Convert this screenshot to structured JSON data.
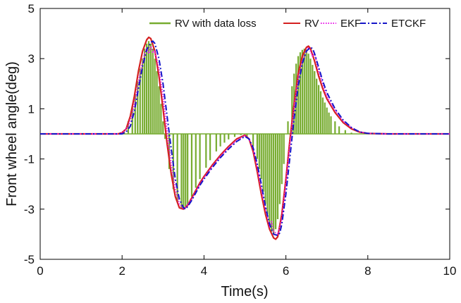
{
  "chart_data": {
    "type": "line",
    "title": "",
    "xlabel": "Time(s)",
    "ylabel": "Front wheel angle(deg)",
    "xlim": [
      0,
      10
    ],
    "ylim": [
      -5,
      5
    ],
    "xticks": [
      0,
      2,
      4,
      6,
      8,
      10
    ],
    "yticks": [
      -5,
      -3,
      -1,
      1,
      3,
      5
    ],
    "xtick_labels": [
      "0",
      "2",
      "4",
      "6",
      "8",
      "10"
    ],
    "ytick_labels": [
      "-5",
      "-3",
      "-1",
      "1",
      "3",
      "5"
    ],
    "grid": false,
    "legend_position": "top",
    "legend": [
      "RV with data loss",
      "RV",
      "EKF",
      "ETCKF"
    ],
    "series": [
      {
        "name": "RV with data loss",
        "style": "stem",
        "color": "#77ac30",
        "x": [
          2.05,
          2.15,
          2.25,
          2.32,
          2.38,
          2.44,
          2.5,
          2.55,
          2.6,
          2.65,
          2.7,
          2.75,
          2.8,
          2.85,
          2.9,
          2.95,
          3.0,
          3.05,
          3.15,
          3.25,
          3.35,
          3.45,
          3.5,
          3.55,
          3.6,
          3.7,
          3.8,
          3.9,
          4.05,
          4.15,
          4.3,
          4.4,
          4.5,
          4.6,
          4.75,
          4.9,
          5.05,
          5.2,
          5.3,
          5.35,
          5.4,
          5.45,
          5.5,
          5.55,
          5.6,
          5.65,
          5.7,
          5.75,
          5.8,
          5.85,
          5.9,
          5.95,
          6.05,
          6.15,
          6.2,
          6.25,
          6.3,
          6.35,
          6.4,
          6.45,
          6.5,
          6.55,
          6.6,
          6.65,
          6.7,
          6.75,
          6.8,
          6.85,
          6.9,
          6.95,
          7.0,
          7.05,
          7.1,
          7.2,
          7.3,
          7.45,
          7.6
        ],
        "values": [
          0.15,
          0.5,
          1.1,
          1.6,
          2.1,
          2.6,
          3.0,
          3.4,
          3.6,
          3.7,
          3.6,
          3.4,
          3.0,
          2.5,
          1.9,
          1.2,
          0.5,
          -0.2,
          -1.4,
          -2.2,
          -2.7,
          -2.95,
          -3.0,
          -2.9,
          -2.8,
          -2.5,
          -2.15,
          -1.8,
          -1.35,
          -1.05,
          -0.7,
          -0.5,
          -0.35,
          -0.22,
          -0.12,
          -0.05,
          -0.15,
          -0.5,
          -1.0,
          -1.4,
          -1.8,
          -2.3,
          -2.8,
          -3.2,
          -3.6,
          -3.9,
          -4.0,
          -3.8,
          -3.4,
          -2.8,
          -2.0,
          -1.2,
          0.5,
          1.9,
          2.4,
          2.8,
          3.1,
          3.25,
          3.35,
          3.4,
          3.35,
          3.2,
          3.0,
          2.75,
          2.5,
          2.2,
          1.95,
          1.7,
          1.45,
          1.25,
          1.05,
          0.85,
          0.7,
          0.5,
          0.3,
          0.15,
          0.05
        ]
      },
      {
        "name": "RV",
        "style": "solid",
        "color": "#d42020",
        "x": [
          0,
          1.9,
          2.0,
          2.1,
          2.2,
          2.3,
          2.4,
          2.5,
          2.6,
          2.65,
          2.7,
          2.8,
          2.9,
          3.0,
          3.1,
          3.2,
          3.3,
          3.4,
          3.5,
          3.6,
          3.7,
          3.8,
          3.9,
          4.0,
          4.2,
          4.4,
          4.6,
          4.8,
          5.0,
          5.1,
          5.2,
          5.3,
          5.4,
          5.5,
          5.6,
          5.7,
          5.75,
          5.8,
          5.9,
          6.0,
          6.1,
          6.2,
          6.3,
          6.4,
          6.5,
          6.55,
          6.6,
          6.7,
          6.8,
          6.9,
          7.0,
          7.2,
          7.4,
          7.6,
          7.8,
          8.0,
          8.5,
          10
        ],
        "values": [
          0,
          0,
          0.05,
          0.2,
          0.7,
          1.5,
          2.5,
          3.3,
          3.75,
          3.85,
          3.8,
          3.3,
          2.3,
          1.0,
          -0.4,
          -1.6,
          -2.5,
          -2.95,
          -3.0,
          -2.85,
          -2.55,
          -2.25,
          -1.95,
          -1.7,
          -1.25,
          -0.85,
          -0.5,
          -0.2,
          -0.05,
          -0.2,
          -0.7,
          -1.5,
          -2.4,
          -3.2,
          -3.8,
          -4.15,
          -4.2,
          -4.1,
          -3.2,
          -1.8,
          -0.2,
          1.2,
          2.4,
          3.1,
          3.45,
          3.5,
          3.4,
          2.9,
          2.3,
          1.8,
          1.4,
          0.85,
          0.45,
          0.2,
          0.07,
          0.02,
          0,
          0
        ]
      },
      {
        "name": "EKF",
        "style": "dotted",
        "color": "#e815e8",
        "x": [
          0,
          1.95,
          2.05,
          2.15,
          2.25,
          2.35,
          2.45,
          2.55,
          2.6,
          2.65,
          2.7,
          2.75,
          2.8,
          2.9,
          3.0,
          3.1,
          3.2,
          3.3,
          3.4,
          3.5,
          3.55,
          3.6,
          3.7,
          3.8,
          3.9,
          4.0,
          4.2,
          4.4,
          4.6,
          4.8,
          5.0,
          5.1,
          5.2,
          5.3,
          5.4,
          5.5,
          5.55,
          5.6,
          5.65,
          5.7,
          5.75,
          5.8,
          5.9,
          6.0,
          6.1,
          6.2,
          6.3,
          6.4,
          6.5,
          6.55,
          6.6,
          6.65,
          6.7,
          6.8,
          6.9,
          7.0,
          7.1,
          7.2,
          7.4,
          7.6,
          7.8,
          8.0,
          8.5,
          10
        ],
        "values": [
          0,
          0,
          0.1,
          0.3,
          0.8,
          1.6,
          2.5,
          3.2,
          3.4,
          3.2,
          3.5,
          3.25,
          3.3,
          2.6,
          1.5,
          0.1,
          -1.2,
          -2.2,
          -2.8,
          -3.0,
          -2.95,
          -2.8,
          -2.6,
          -2.3,
          -2.0,
          -1.75,
          -1.3,
          -0.9,
          -0.55,
          -0.25,
          -0.07,
          -0.2,
          -0.6,
          -1.3,
          -2.2,
          -3.0,
          -3.3,
          -3.7,
          -3.5,
          -3.9,
          -3.95,
          -4.0,
          -3.4,
          -2.0,
          -0.4,
          1.0,
          2.2,
          2.9,
          3.3,
          3.45,
          3.3,
          3.1,
          3.2,
          2.5,
          2.0,
          1.5,
          1.2,
          0.95,
          0.5,
          0.25,
          0.08,
          0.02,
          0,
          0
        ]
      },
      {
        "name": "ETCKF",
        "style": "dashdot",
        "color": "#1515c8",
        "x": [
          0,
          2.0,
          2.1,
          2.2,
          2.3,
          2.4,
          2.5,
          2.6,
          2.7,
          2.75,
          2.8,
          2.9,
          3.0,
          3.1,
          3.2,
          3.3,
          3.4,
          3.5,
          3.55,
          3.6,
          3.7,
          3.8,
          3.9,
          4.0,
          4.2,
          4.4,
          4.6,
          4.8,
          5.0,
          5.1,
          5.2,
          5.3,
          5.4,
          5.5,
          5.6,
          5.7,
          5.8,
          5.85,
          5.9,
          6.0,
          6.1,
          6.2,
          6.3,
          6.4,
          6.5,
          6.6,
          6.65,
          6.7,
          6.8,
          6.9,
          7.0,
          7.2,
          7.4,
          7.6,
          7.8,
          8.0,
          8.5,
          10
        ],
        "values": [
          0,
          0,
          0.08,
          0.3,
          0.9,
          1.8,
          2.7,
          3.35,
          3.65,
          3.7,
          3.6,
          3.0,
          2.0,
          0.7,
          -0.6,
          -1.8,
          -2.6,
          -2.95,
          -3.0,
          -2.9,
          -2.65,
          -2.35,
          -2.05,
          -1.8,
          -1.35,
          -0.95,
          -0.6,
          -0.3,
          -0.1,
          -0.2,
          -0.55,
          -1.2,
          -2.0,
          -2.9,
          -3.6,
          -4.0,
          -4.05,
          -3.95,
          -3.6,
          -2.4,
          -0.9,
          0.6,
          1.9,
          2.8,
          3.3,
          3.45,
          3.4,
          3.2,
          2.65,
          2.1,
          1.65,
          1.0,
          0.55,
          0.25,
          0.08,
          0.02,
          0,
          0
        ]
      }
    ]
  }
}
